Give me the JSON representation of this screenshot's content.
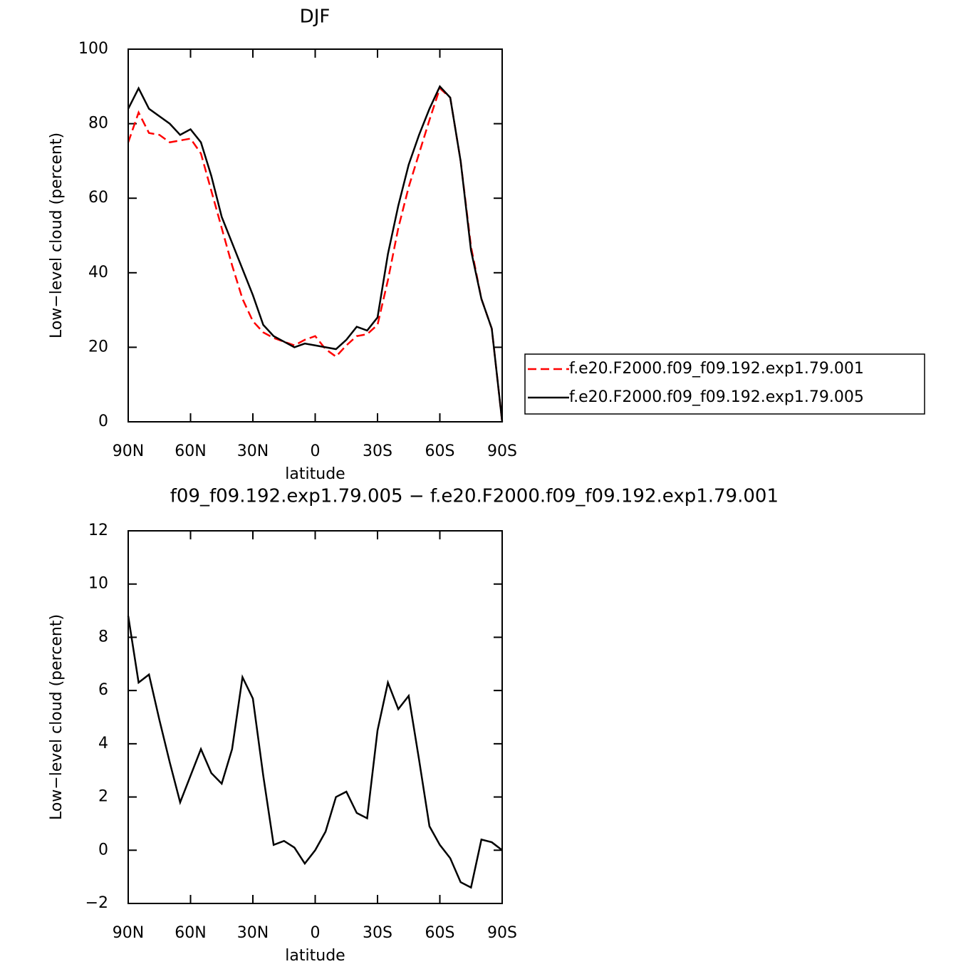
{
  "chart_data": [
    {
      "type": "line",
      "title": "DJF",
      "xlabel": "latitude",
      "ylabel": "Low−level cloud (percent)",
      "x": [
        90,
        85,
        80,
        75,
        70,
        65,
        60,
        55,
        50,
        45,
        40,
        35,
        30,
        25,
        20,
        15,
        10,
        5,
        0,
        -5,
        -10,
        -15,
        -20,
        -25,
        -30,
        -35,
        -40,
        -45,
        -50,
        -55,
        -60,
        -65,
        -70,
        -75,
        -80,
        -85,
        -90
      ],
      "xlim": [
        90,
        -90
      ],
      "xticks": [
        {
          "value": 90,
          "label": "90N"
        },
        {
          "value": 60,
          "label": "60N"
        },
        {
          "value": 30,
          "label": "30N"
        },
        0,
        {
          "value": -30,
          "label": "30S"
        },
        {
          "value": -60,
          "label": "60S"
        },
        {
          "value": -90,
          "label": "90S"
        }
      ],
      "ylim": [
        0,
        100
      ],
      "yticks": [
        0,
        20,
        40,
        60,
        80,
        100
      ],
      "legend": "right",
      "series": [
        {
          "name": "f.e20.F2000.f09_f09.192.exp1.79.001",
          "color": "#ff0000",
          "dash": "dashed",
          "values": [
            75,
            83,
            77.5,
            77,
            75,
            75.5,
            76,
            72,
            62,
            52,
            42,
            33,
            27,
            24,
            22.5,
            21.5,
            20.5,
            22,
            23,
            19.5,
            17.5,
            20.5,
            23,
            23.5,
            26,
            38,
            52,
            63,
            72,
            81,
            89.5,
            87,
            70,
            47,
            33,
            25,
            0
          ]
        },
        {
          "name": "f.e20.F2000.f09_f09.192.exp1.79.005",
          "color": "#000000",
          "dash": "solid",
          "values": [
            84,
            89.5,
            84,
            82,
            80,
            77,
            78.5,
            75,
            66,
            55,
            48,
            41,
            34,
            26,
            23,
            21.5,
            20,
            21,
            20.5,
            20,
            19.5,
            22,
            25.5,
            24.5,
            28,
            45,
            58,
            69,
            77,
            84,
            90,
            87,
            70,
            46,
            33,
            25,
            0
          ]
        }
      ]
    },
    {
      "type": "line",
      "title": "f09_f09.192.exp1.79.005 − f.e20.F2000.f09_f09.192.exp1.79.001",
      "xlabel": "latitude",
      "ylabel": "Low−level cloud (percent)",
      "x": [
        90,
        85,
        80,
        75,
        70,
        65,
        60,
        55,
        50,
        45,
        40,
        35,
        30,
        25,
        20,
        15,
        10,
        5,
        0,
        -5,
        -10,
        -15,
        -20,
        -25,
        -30,
        -35,
        -40,
        -45,
        -50,
        -55,
        -60,
        -65,
        -70,
        -75,
        -80,
        -85,
        -90
      ],
      "xlim": [
        90,
        -90
      ],
      "xticks": [
        {
          "value": 90,
          "label": "90N"
        },
        {
          "value": 60,
          "label": "60N"
        },
        {
          "value": 30,
          "label": "30N"
        },
        0,
        {
          "value": -30,
          "label": "30S"
        },
        {
          "value": -60,
          "label": "60S"
        },
        {
          "value": -90,
          "label": "90S"
        }
      ],
      "ylim": [
        -2,
        12
      ],
      "yticks": [
        {
          "value": -2,
          "label": "−2"
        },
        0,
        2,
        4,
        6,
        8,
        10,
        12
      ],
      "color": "#000000",
      "values": [
        8.8,
        6.3,
        6.6,
        4.9,
        3.3,
        1.8,
        2.8,
        3.8,
        2.9,
        2.5,
        3.8,
        6.5,
        5.7,
        2.8,
        0.2,
        0.35,
        0.1,
        -0.5,
        0,
        0.7,
        2.0,
        2.2,
        1.4,
        1.2,
        4.5,
        6.3,
        5.3,
        5.8,
        3.4,
        0.9,
        0.2,
        -0.3,
        -1.2,
        -1.4,
        0.4,
        0.3,
        0
      ]
    }
  ]
}
